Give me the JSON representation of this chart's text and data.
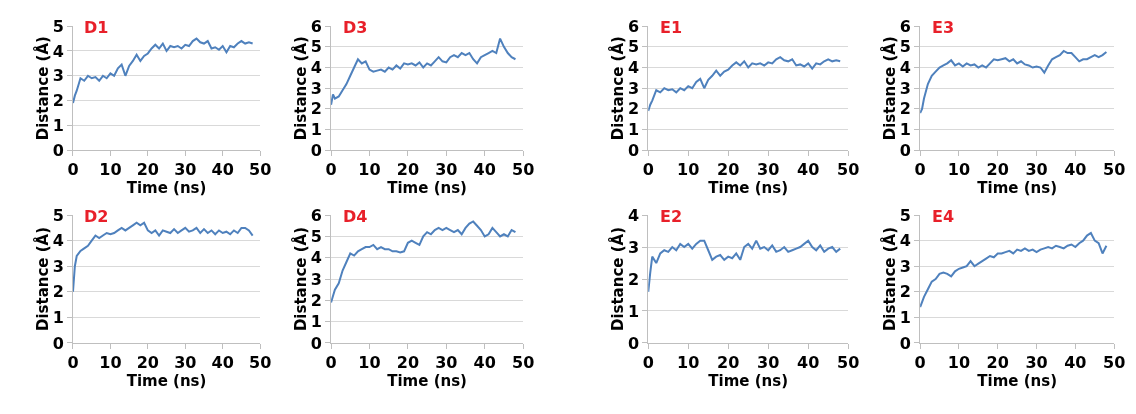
{
  "chart_data": [
    {
      "type": "line",
      "title": "D1",
      "xlabel": "Time (ns)",
      "ylabel": "Distance (Å)",
      "xlim": [
        0,
        50
      ],
      "xticks": [
        0,
        10,
        20,
        30,
        40,
        50
      ],
      "ylim": [
        0,
        5
      ],
      "yticks": [
        0,
        1,
        2,
        3,
        4,
        5
      ],
      "grid": "y",
      "x": [
        0,
        0.5,
        1,
        2,
        3,
        4,
        5,
        6,
        7,
        8,
        9,
        10,
        11,
        12,
        13,
        14,
        15,
        16,
        17,
        18,
        19,
        20,
        21,
        22,
        23,
        24,
        25,
        26,
        27,
        28,
        29,
        30,
        31,
        32,
        33,
        34,
        35,
        36,
        37,
        38,
        39,
        40,
        41,
        42,
        43,
        44,
        45,
        46,
        47,
        48
      ],
      "series": [
        {
          "color": "#4f81bd",
          "values": [
            1.9,
            2.2,
            2.4,
            2.9,
            2.8,
            3.0,
            2.9,
            2.95,
            2.8,
            3.0,
            2.9,
            3.1,
            3.0,
            3.3,
            3.45,
            3.0,
            3.4,
            3.6,
            3.85,
            3.6,
            3.8,
            3.9,
            4.1,
            4.25,
            4.1,
            4.3,
            4.0,
            4.2,
            4.15,
            4.2,
            4.1,
            4.25,
            4.2,
            4.4,
            4.5,
            4.35,
            4.3,
            4.4,
            4.1,
            4.15,
            4.05,
            4.2,
            3.95,
            4.2,
            4.15,
            4.3,
            4.4,
            4.3,
            4.35,
            4.3
          ]
        }
      ]
    },
    {
      "type": "line",
      "title": "D3",
      "xlabel": "Time (ns)",
      "ylabel": "Distance (Å)",
      "xlim": [
        0,
        50
      ],
      "xticks": [
        0,
        10,
        20,
        30,
        40,
        50
      ],
      "ylim": [
        0,
        6
      ],
      "yticks": [
        0,
        1,
        2,
        3,
        4,
        5,
        6
      ],
      "grid": "y",
      "x": [
        0,
        0.5,
        1,
        2,
        3,
        4,
        5,
        6,
        7,
        8,
        9,
        10,
        11,
        12,
        13,
        14,
        15,
        16,
        17,
        18,
        19,
        20,
        21,
        22,
        23,
        24,
        25,
        26,
        27,
        28,
        29,
        30,
        31,
        32,
        33,
        34,
        35,
        36,
        37,
        38,
        39,
        40,
        41,
        42,
        43,
        44,
        45,
        46,
        47,
        48
      ],
      "series": [
        {
          "color": "#4f81bd",
          "values": [
            2.2,
            2.7,
            2.5,
            2.6,
            2.9,
            3.2,
            3.6,
            4.0,
            4.4,
            4.2,
            4.3,
            3.9,
            3.8,
            3.85,
            3.9,
            3.8,
            4.0,
            3.9,
            4.1,
            3.95,
            4.2,
            4.15,
            4.2,
            4.1,
            4.25,
            4.0,
            4.2,
            4.1,
            4.3,
            4.5,
            4.3,
            4.25,
            4.5,
            4.6,
            4.5,
            4.7,
            4.6,
            4.7,
            4.4,
            4.2,
            4.5,
            4.6,
            4.7,
            4.8,
            4.7,
            5.4,
            5.0,
            4.7,
            4.5,
            4.4
          ]
        }
      ]
    },
    {
      "type": "line",
      "title": "E1",
      "xlabel": "Time (ns)",
      "ylabel": "Distance (Å)",
      "xlim": [
        0,
        50
      ],
      "xticks": [
        0,
        10,
        20,
        30,
        40,
        50
      ],
      "ylim": [
        0,
        6
      ],
      "yticks": [
        0,
        1,
        2,
        3,
        4,
        5,
        6
      ],
      "grid": "y",
      "x": [
        0,
        0.5,
        1,
        2,
        3,
        4,
        5,
        6,
        7,
        8,
        9,
        10,
        11,
        12,
        13,
        14,
        15,
        16,
        17,
        18,
        19,
        20,
        21,
        22,
        23,
        24,
        25,
        26,
        27,
        28,
        29,
        30,
        31,
        32,
        33,
        34,
        35,
        36,
        37,
        38,
        39,
        40,
        41,
        42,
        43,
        44,
        45,
        46,
        47,
        48
      ],
      "series": [
        {
          "color": "#4f81bd",
          "values": [
            1.9,
            2.2,
            2.4,
            2.9,
            2.8,
            3.0,
            2.9,
            2.95,
            2.8,
            3.0,
            2.9,
            3.1,
            3.0,
            3.3,
            3.45,
            3.0,
            3.4,
            3.6,
            3.85,
            3.6,
            3.8,
            3.9,
            4.1,
            4.25,
            4.1,
            4.3,
            4.0,
            4.2,
            4.15,
            4.2,
            4.1,
            4.25,
            4.2,
            4.4,
            4.5,
            4.35,
            4.3,
            4.4,
            4.1,
            4.15,
            4.05,
            4.2,
            3.95,
            4.2,
            4.15,
            4.3,
            4.4,
            4.3,
            4.35,
            4.3
          ]
        }
      ]
    },
    {
      "type": "line",
      "title": "E3",
      "xlabel": "Time (ns)",
      "ylabel": "Distance (Å)",
      "xlim": [
        0,
        50
      ],
      "xticks": [
        0,
        10,
        20,
        30,
        40,
        50
      ],
      "ylim": [
        0,
        6
      ],
      "yticks": [
        0,
        1,
        2,
        3,
        4,
        5,
        6
      ],
      "grid": "y",
      "x": [
        0,
        0.5,
        1,
        2,
        3,
        4,
        5,
        6,
        7,
        8,
        9,
        10,
        11,
        12,
        13,
        14,
        15,
        16,
        17,
        18,
        19,
        20,
        21,
        22,
        23,
        24,
        25,
        26,
        27,
        28,
        29,
        30,
        31,
        32,
        33,
        34,
        35,
        36,
        37,
        38,
        39,
        40,
        41,
        42,
        43,
        44,
        45,
        46,
        47,
        48
      ],
      "series": [
        {
          "color": "#4f81bd",
          "values": [
            1.8,
            2.0,
            2.5,
            3.2,
            3.6,
            3.8,
            4.0,
            4.1,
            4.2,
            4.35,
            4.1,
            4.2,
            4.05,
            4.2,
            4.1,
            4.15,
            4.0,
            4.1,
            4.0,
            4.2,
            4.4,
            4.35,
            4.4,
            4.45,
            4.3,
            4.4,
            4.2,
            4.3,
            4.15,
            4.1,
            4.0,
            4.05,
            4.0,
            3.75,
            4.1,
            4.4,
            4.5,
            4.6,
            4.8,
            4.7,
            4.7,
            4.5,
            4.3,
            4.4,
            4.4,
            4.5,
            4.6,
            4.5,
            4.6,
            4.75
          ]
        }
      ]
    },
    {
      "type": "line",
      "title": "D2",
      "xlabel": "Time (ns)",
      "ylabel": "Distance (Å)",
      "xlim": [
        0,
        50
      ],
      "xticks": [
        0,
        10,
        20,
        30,
        40,
        50
      ],
      "ylim": [
        0,
        5
      ],
      "yticks": [
        0,
        1,
        2,
        3,
        4,
        5
      ],
      "grid": "y",
      "x": [
        0,
        0.5,
        1,
        2,
        3,
        4,
        5,
        6,
        7,
        8,
        9,
        10,
        11,
        12,
        13,
        14,
        15,
        16,
        17,
        18,
        19,
        20,
        21,
        22,
        23,
        24,
        25,
        26,
        27,
        28,
        29,
        30,
        31,
        32,
        33,
        34,
        35,
        36,
        37,
        38,
        39,
        40,
        41,
        42,
        43,
        44,
        45,
        46,
        47,
        48
      ],
      "series": [
        {
          "color": "#4f81bd",
          "values": [
            2.0,
            3.0,
            3.4,
            3.6,
            3.7,
            3.8,
            4.0,
            4.2,
            4.1,
            4.2,
            4.3,
            4.25,
            4.3,
            4.4,
            4.5,
            4.4,
            4.5,
            4.6,
            4.7,
            4.6,
            4.7,
            4.4,
            4.3,
            4.4,
            4.2,
            4.4,
            4.35,
            4.3,
            4.45,
            4.3,
            4.4,
            4.5,
            4.35,
            4.4,
            4.5,
            4.3,
            4.45,
            4.3,
            4.4,
            4.25,
            4.4,
            4.3,
            4.35,
            4.25,
            4.4,
            4.3,
            4.5,
            4.5,
            4.4,
            4.2
          ]
        }
      ]
    },
    {
      "type": "line",
      "title": "D4",
      "xlabel": "Time (ns)",
      "ylabel": "Distance (Å)",
      "xlim": [
        0,
        50
      ],
      "xticks": [
        0,
        10,
        20,
        30,
        40,
        50
      ],
      "ylim": [
        0,
        6
      ],
      "yticks": [
        0,
        1,
        2,
        3,
        4,
        5,
        6
      ],
      "grid": "y",
      "x": [
        0,
        0.5,
        1,
        2,
        3,
        4,
        5,
        6,
        7,
        8,
        9,
        10,
        11,
        12,
        13,
        14,
        15,
        16,
        17,
        18,
        19,
        20,
        21,
        22,
        23,
        24,
        25,
        26,
        27,
        28,
        29,
        30,
        31,
        32,
        33,
        34,
        35,
        36,
        37,
        38,
        39,
        40,
        41,
        42,
        43,
        44,
        45,
        46,
        47,
        48
      ],
      "series": [
        {
          "color": "#4f81bd",
          "values": [
            1.9,
            2.2,
            2.5,
            2.8,
            3.4,
            3.8,
            4.2,
            4.1,
            4.3,
            4.4,
            4.5,
            4.5,
            4.6,
            4.4,
            4.5,
            4.4,
            4.4,
            4.3,
            4.3,
            4.25,
            4.3,
            4.7,
            4.8,
            4.7,
            4.6,
            5.0,
            5.2,
            5.1,
            5.3,
            5.4,
            5.3,
            5.4,
            5.3,
            5.2,
            5.3,
            5.1,
            5.4,
            5.6,
            5.7,
            5.5,
            5.3,
            5.0,
            5.1,
            5.4,
            5.2,
            5.0,
            5.1,
            5.0,
            5.3,
            5.2
          ]
        }
      ]
    },
    {
      "type": "line",
      "title": "E2",
      "xlabel": "Time (ns)",
      "ylabel": "Distance (Å)",
      "xlim": [
        0,
        50
      ],
      "xticks": [
        0,
        10,
        20,
        30,
        40,
        50
      ],
      "ylim": [
        0,
        4
      ],
      "yticks": [
        0,
        1,
        2,
        3,
        4
      ],
      "grid": "y",
      "x": [
        0,
        0.5,
        1,
        2,
        3,
        4,
        5,
        6,
        7,
        8,
        9,
        10,
        11,
        12,
        13,
        14,
        15,
        16,
        17,
        18,
        19,
        20,
        21,
        22,
        23,
        24,
        25,
        26,
        27,
        28,
        29,
        30,
        31,
        32,
        33,
        34,
        35,
        36,
        37,
        38,
        39,
        40,
        41,
        42,
        43,
        44,
        45,
        46,
        47,
        48
      ],
      "series": [
        {
          "color": "#4f81bd",
          "values": [
            1.6,
            2.2,
            2.7,
            2.5,
            2.8,
            2.9,
            2.85,
            3.0,
            2.9,
            3.1,
            3.0,
            3.1,
            2.95,
            3.1,
            3.2,
            3.2,
            2.9,
            2.6,
            2.7,
            2.75,
            2.6,
            2.7,
            2.65,
            2.8,
            2.6,
            3.0,
            3.1,
            2.95,
            3.2,
            2.95,
            3.0,
            2.9,
            3.05,
            2.85,
            2.9,
            3.0,
            2.85,
            2.9,
            2.95,
            3.0,
            3.1,
            3.2,
            3.0,
            2.9,
            3.05,
            2.85,
            2.95,
            3.0,
            2.85,
            2.95
          ]
        }
      ]
    },
    {
      "type": "line",
      "title": "E4",
      "xlabel": "Time (ns)",
      "ylabel": "Distance (Å)",
      "xlim": [
        0,
        50
      ],
      "xticks": [
        0,
        10,
        20,
        30,
        40,
        50
      ],
      "ylim": [
        0,
        5
      ],
      "yticks": [
        0,
        1,
        2,
        3,
        4,
        5
      ],
      "grid": "y",
      "x": [
        0,
        0.5,
        1,
        2,
        3,
        4,
        5,
        6,
        7,
        8,
        9,
        10,
        11,
        12,
        13,
        14,
        15,
        16,
        17,
        18,
        19,
        20,
        21,
        22,
        23,
        24,
        25,
        26,
        27,
        28,
        29,
        30,
        31,
        32,
        33,
        34,
        35,
        36,
        37,
        38,
        39,
        40,
        41,
        42,
        43,
        44,
        45,
        46,
        47,
        48
      ],
      "series": [
        {
          "color": "#4f81bd",
          "values": [
            1.4,
            1.6,
            1.8,
            2.1,
            2.4,
            2.5,
            2.7,
            2.75,
            2.7,
            2.6,
            2.8,
            2.9,
            2.95,
            3.0,
            3.2,
            3.0,
            3.1,
            3.2,
            3.3,
            3.4,
            3.35,
            3.5,
            3.5,
            3.55,
            3.6,
            3.5,
            3.65,
            3.6,
            3.7,
            3.6,
            3.65,
            3.55,
            3.65,
            3.7,
            3.75,
            3.7,
            3.8,
            3.75,
            3.7,
            3.8,
            3.85,
            3.75,
            3.9,
            4.0,
            4.2,
            4.3,
            4.0,
            3.9,
            3.5,
            3.8
          ]
        }
      ]
    }
  ]
}
